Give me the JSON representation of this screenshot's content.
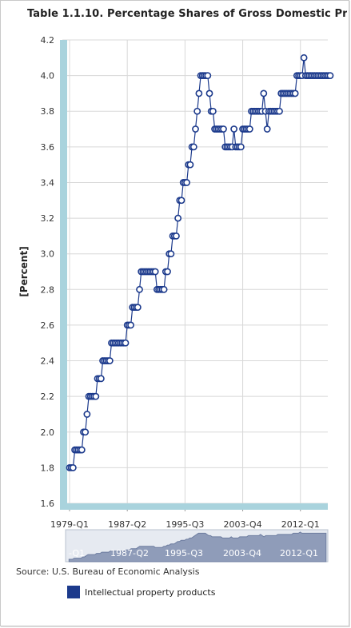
{
  "chart_data": {
    "type": "line",
    "title": "Table 1.1.10. Percentage Shares of Gross Domestic Pro",
    "ylabel": "[Percent]",
    "xlabel": "",
    "ylim": [
      1.6,
      4.2
    ],
    "y_ticks": [
      "1.6",
      "1.8",
      "2.0",
      "2.2",
      "2.4",
      "2.6",
      "2.8",
      "3.0",
      "3.2",
      "3.4",
      "3.6",
      "3.8",
      "4.0",
      "4.2"
    ],
    "x_tick_labels": [
      "1979-Q1",
      "1987-Q2",
      "1995-Q3",
      "2003-Q4",
      "2012-Q1"
    ],
    "navigator_labels": [
      "-Q1",
      "1987-Q2",
      "1995-Q3",
      "2003-Q4",
      "2012-Q1"
    ],
    "grid": true,
    "legend_position": "bottom-left",
    "series": [
      {
        "name": "Intellectual property products",
        "color": "#1c3a8c",
        "x": [
          1979.0,
          1979.25,
          1979.5,
          1979.75,
          1980.0,
          1980.25,
          1980.5,
          1980.75,
          1981.0,
          1981.25,
          1981.5,
          1981.75,
          1982.0,
          1982.25,
          1982.5,
          1982.75,
          1983.0,
          1983.25,
          1983.5,
          1983.75,
          1984.0,
          1984.25,
          1984.5,
          1984.75,
          1985.0,
          1985.25,
          1985.5,
          1985.75,
          1986.0,
          1986.25,
          1986.5,
          1986.75,
          1987.0,
          1987.25,
          1987.5,
          1987.75,
          1988.0,
          1988.25,
          1988.5,
          1988.75,
          1989.0,
          1989.25,
          1989.5,
          1989.75,
          1990.0,
          1990.25,
          1990.5,
          1990.75,
          1991.0,
          1991.25,
          1991.5,
          1991.75,
          1992.0,
          1992.25,
          1992.5,
          1992.75,
          1993.0,
          1993.25,
          1993.5,
          1993.75,
          1994.0,
          1994.25,
          1994.5,
          1994.75,
          1995.0,
          1995.25,
          1995.5,
          1995.75,
          1996.0,
          1996.25,
          1996.5,
          1996.75,
          1997.0,
          1997.25,
          1997.5,
          1997.75,
          1998.0,
          1998.25,
          1998.5,
          1998.75,
          1999.0,
          1999.25,
          1999.5,
          1999.75,
          2000.0,
          2000.25,
          2000.5,
          2000.75,
          2001.0,
          2001.25,
          2001.5,
          2001.75,
          2002.0,
          2002.25,
          2002.5,
          2002.75,
          2003.0,
          2003.25,
          2003.5,
          2003.75,
          2004.0,
          2004.25,
          2004.5,
          2004.75,
          2005.0,
          2005.25,
          2005.5,
          2005.75,
          2006.0,
          2006.25,
          2006.5,
          2006.75,
          2007.0,
          2007.25,
          2007.5,
          2007.75,
          2008.0,
          2008.25,
          2008.5,
          2008.75,
          2009.0,
          2009.25,
          2009.5,
          2009.75,
          2010.0,
          2010.25,
          2010.5,
          2010.75,
          2011.0,
          2011.25,
          2011.5,
          2011.75,
          2012.0,
          2012.25,
          2012.5,
          2012.75,
          2013.0,
          2013.25,
          2013.5,
          2013.75,
          2014.0,
          2014.25,
          2014.5,
          2014.75,
          2015.0,
          2015.25,
          2015.5,
          2015.75,
          2016.0,
          2016.25
        ],
        "values": [
          1.8,
          1.8,
          1.8,
          1.9,
          1.9,
          1.9,
          1.9,
          1.9,
          2.0,
          2.0,
          2.1,
          2.2,
          2.2,
          2.2,
          2.2,
          2.2,
          2.3,
          2.3,
          2.3,
          2.4,
          2.4,
          2.4,
          2.4,
          2.4,
          2.5,
          2.5,
          2.5,
          2.5,
          2.5,
          2.5,
          2.5,
          2.5,
          2.5,
          2.6,
          2.6,
          2.6,
          2.7,
          2.7,
          2.7,
          2.7,
          2.8,
          2.9,
          2.9,
          2.9,
          2.9,
          2.9,
          2.9,
          2.9,
          2.9,
          2.9,
          2.8,
          2.8,
          2.8,
          2.8,
          2.8,
          2.9,
          2.9,
          3.0,
          3.0,
          3.1,
          3.1,
          3.1,
          3.2,
          3.3,
          3.3,
          3.4,
          3.4,
          3.4,
          3.5,
          3.5,
          3.6,
          3.6,
          3.7,
          3.8,
          3.9,
          4.0,
          4.0,
          4.0,
          4.0,
          4.0,
          3.9,
          3.8,
          3.8,
          3.7,
          3.7,
          3.7,
          3.7,
          3.7,
          3.7,
          3.6,
          3.6,
          3.6,
          3.6,
          3.6,
          3.7,
          3.6,
          3.6,
          3.6,
          3.6,
          3.7,
          3.7,
          3.7,
          3.7,
          3.7,
          3.8,
          3.8,
          3.8,
          3.8,
          3.8,
          3.8,
          3.8,
          3.9,
          3.8,
          3.7,
          3.8,
          3.8,
          3.8,
          3.8,
          3.8,
          3.8,
          3.8,
          3.9,
          3.9,
          3.9,
          3.9,
          3.9,
          3.9,
          3.9,
          3.9,
          3.9,
          4.0,
          4.0,
          4.0,
          4.0,
          4.1,
          4.0,
          4.0,
          4.0,
          4.0,
          4.0,
          4.0,
          4.0,
          4.0,
          4.0,
          4.0,
          4.0,
          4.0,
          4.0,
          4.0,
          4.0
        ]
      }
    ]
  },
  "source": "Source: U.S. Bureau of Economic Analysis"
}
